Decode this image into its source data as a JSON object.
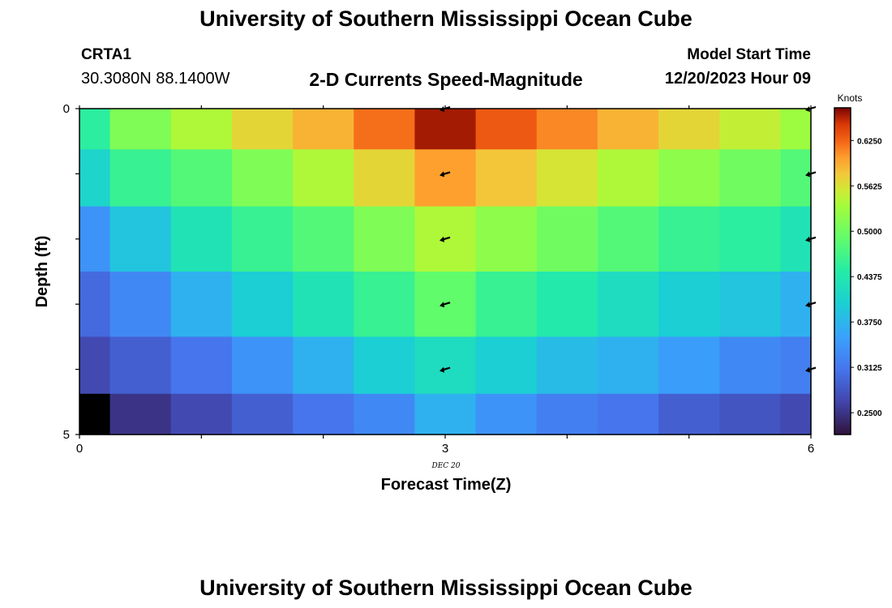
{
  "header": {
    "title": "University of Southern Mississippi Ocean Cube",
    "station": "CRTA1",
    "coordinates": "30.3080N  88.1400W",
    "subtitle": "2-D Currents Speed-Magnitude",
    "model_start_label": "Model Start Time",
    "model_start_value": "12/20/2023 Hour 09"
  },
  "footer": {
    "title": "University of Southern Mississippi Ocean Cube"
  },
  "chart_data": {
    "type": "heatmap",
    "xlabel": "Forecast Time(Z)",
    "ylabel": "Depth (ft)",
    "x_ticks": [
      "0",
      "3",
      "6"
    ],
    "x_tick_values": [
      0,
      3,
      6
    ],
    "x_date_label": "DEC 20",
    "y_ticks": [
      "0",
      "5"
    ],
    "y_tick_values": [
      0,
      5
    ],
    "xlim": [
      0,
      6
    ],
    "ylim": [
      0,
      5
    ],
    "colorbar": {
      "label": "Knots",
      "ticks": [
        "0.2500",
        "0.3125",
        "0.3750",
        "0.4375",
        "0.5000",
        "0.5625",
        "0.6250"
      ],
      "tick_values": [
        0.25,
        0.3125,
        0.375,
        0.4375,
        0.5,
        0.5625,
        0.625
      ],
      "range": [
        0.22,
        0.67
      ]
    },
    "x_centers": [
      0,
      0.5,
      1,
      1.5,
      2,
      2.5,
      3,
      3.5,
      4,
      4.5,
      5,
      5.5,
      6
    ],
    "depth_rows": [
      0.25,
      1,
      2,
      3,
      4,
      4.75
    ],
    "speeds": [
      [
        0.45,
        0.51,
        0.54,
        0.57,
        0.59,
        0.62,
        0.66,
        0.63,
        0.61,
        0.59,
        0.57,
        0.55,
        0.53
      ],
      [
        0.41,
        0.46,
        0.48,
        0.51,
        0.54,
        0.57,
        0.6,
        0.58,
        0.56,
        0.54,
        0.52,
        0.5,
        0.48
      ],
      [
        0.34,
        0.39,
        0.43,
        0.46,
        0.48,
        0.51,
        0.54,
        0.52,
        0.5,
        0.48,
        0.46,
        0.45,
        0.43
      ],
      [
        0.3,
        0.33,
        0.37,
        0.4,
        0.43,
        0.46,
        0.49,
        0.46,
        0.44,
        0.42,
        0.4,
        0.39,
        0.37
      ],
      [
        0.27,
        0.29,
        0.31,
        0.34,
        0.37,
        0.4,
        0.42,
        0.4,
        0.38,
        0.37,
        0.35,
        0.33,
        0.32
      ],
      [
        0.22,
        0.25,
        0.27,
        0.29,
        0.31,
        0.33,
        0.37,
        0.34,
        0.32,
        0.31,
        0.29,
        0.28,
        0.27
      ]
    ],
    "vector_times": [
      3,
      6
    ],
    "vector_depths": [
      0,
      1,
      2,
      3,
      4
    ]
  }
}
